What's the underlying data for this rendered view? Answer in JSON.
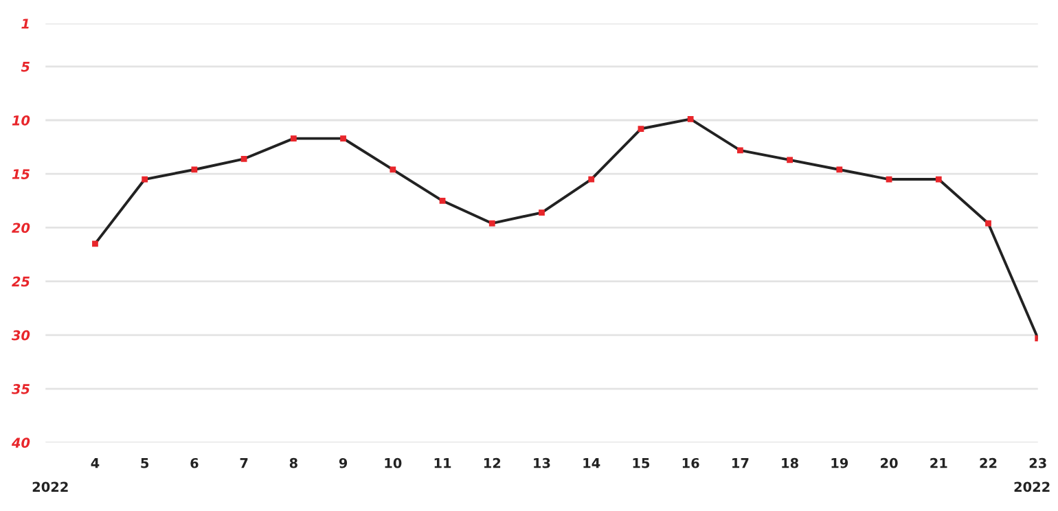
{
  "chart_data": {
    "type": "line",
    "categories": [
      "4",
      "5",
      "6",
      "7",
      "8",
      "9",
      "10",
      "11",
      "12",
      "13",
      "14",
      "15",
      "16",
      "17",
      "18",
      "19",
      "20",
      "21",
      "22",
      "23"
    ],
    "series": [
      {
        "color": "#222222",
        "colors": [
          "#e8262b",
          "#e8262b",
          "#e8262b",
          "#e8262b",
          "#e8262b",
          "#e8262b",
          "#e8262b",
          "#e8262b",
          "#e8262b",
          "#e8262b",
          "#e8262b",
          "#e8262b",
          "#e8262b",
          "#e8262b",
          "#e8262b",
          "#e8262b",
          "#e8262b",
          "#e8262b",
          "#e8262b",
          "#e8262b"
        ],
        "values": [
          21.5,
          15.5,
          14.6,
          13.6,
          11.7,
          11.7,
          14.6,
          17.5,
          19.6,
          18.6,
          15.5,
          10.8,
          9.9,
          12.8,
          13.7,
          14.6,
          15.5,
          15.5,
          19.6,
          30.3
        ]
      }
    ],
    "marker": "square",
    "line_style": "solid",
    "ylim": [
      40,
      1
    ],
    "yticks": [
      1,
      5,
      10,
      15,
      20,
      25,
      30,
      35,
      40
    ],
    "grid": "y",
    "legend": false,
    "annotations": [
      "2022",
      "2022"
    ]
  }
}
